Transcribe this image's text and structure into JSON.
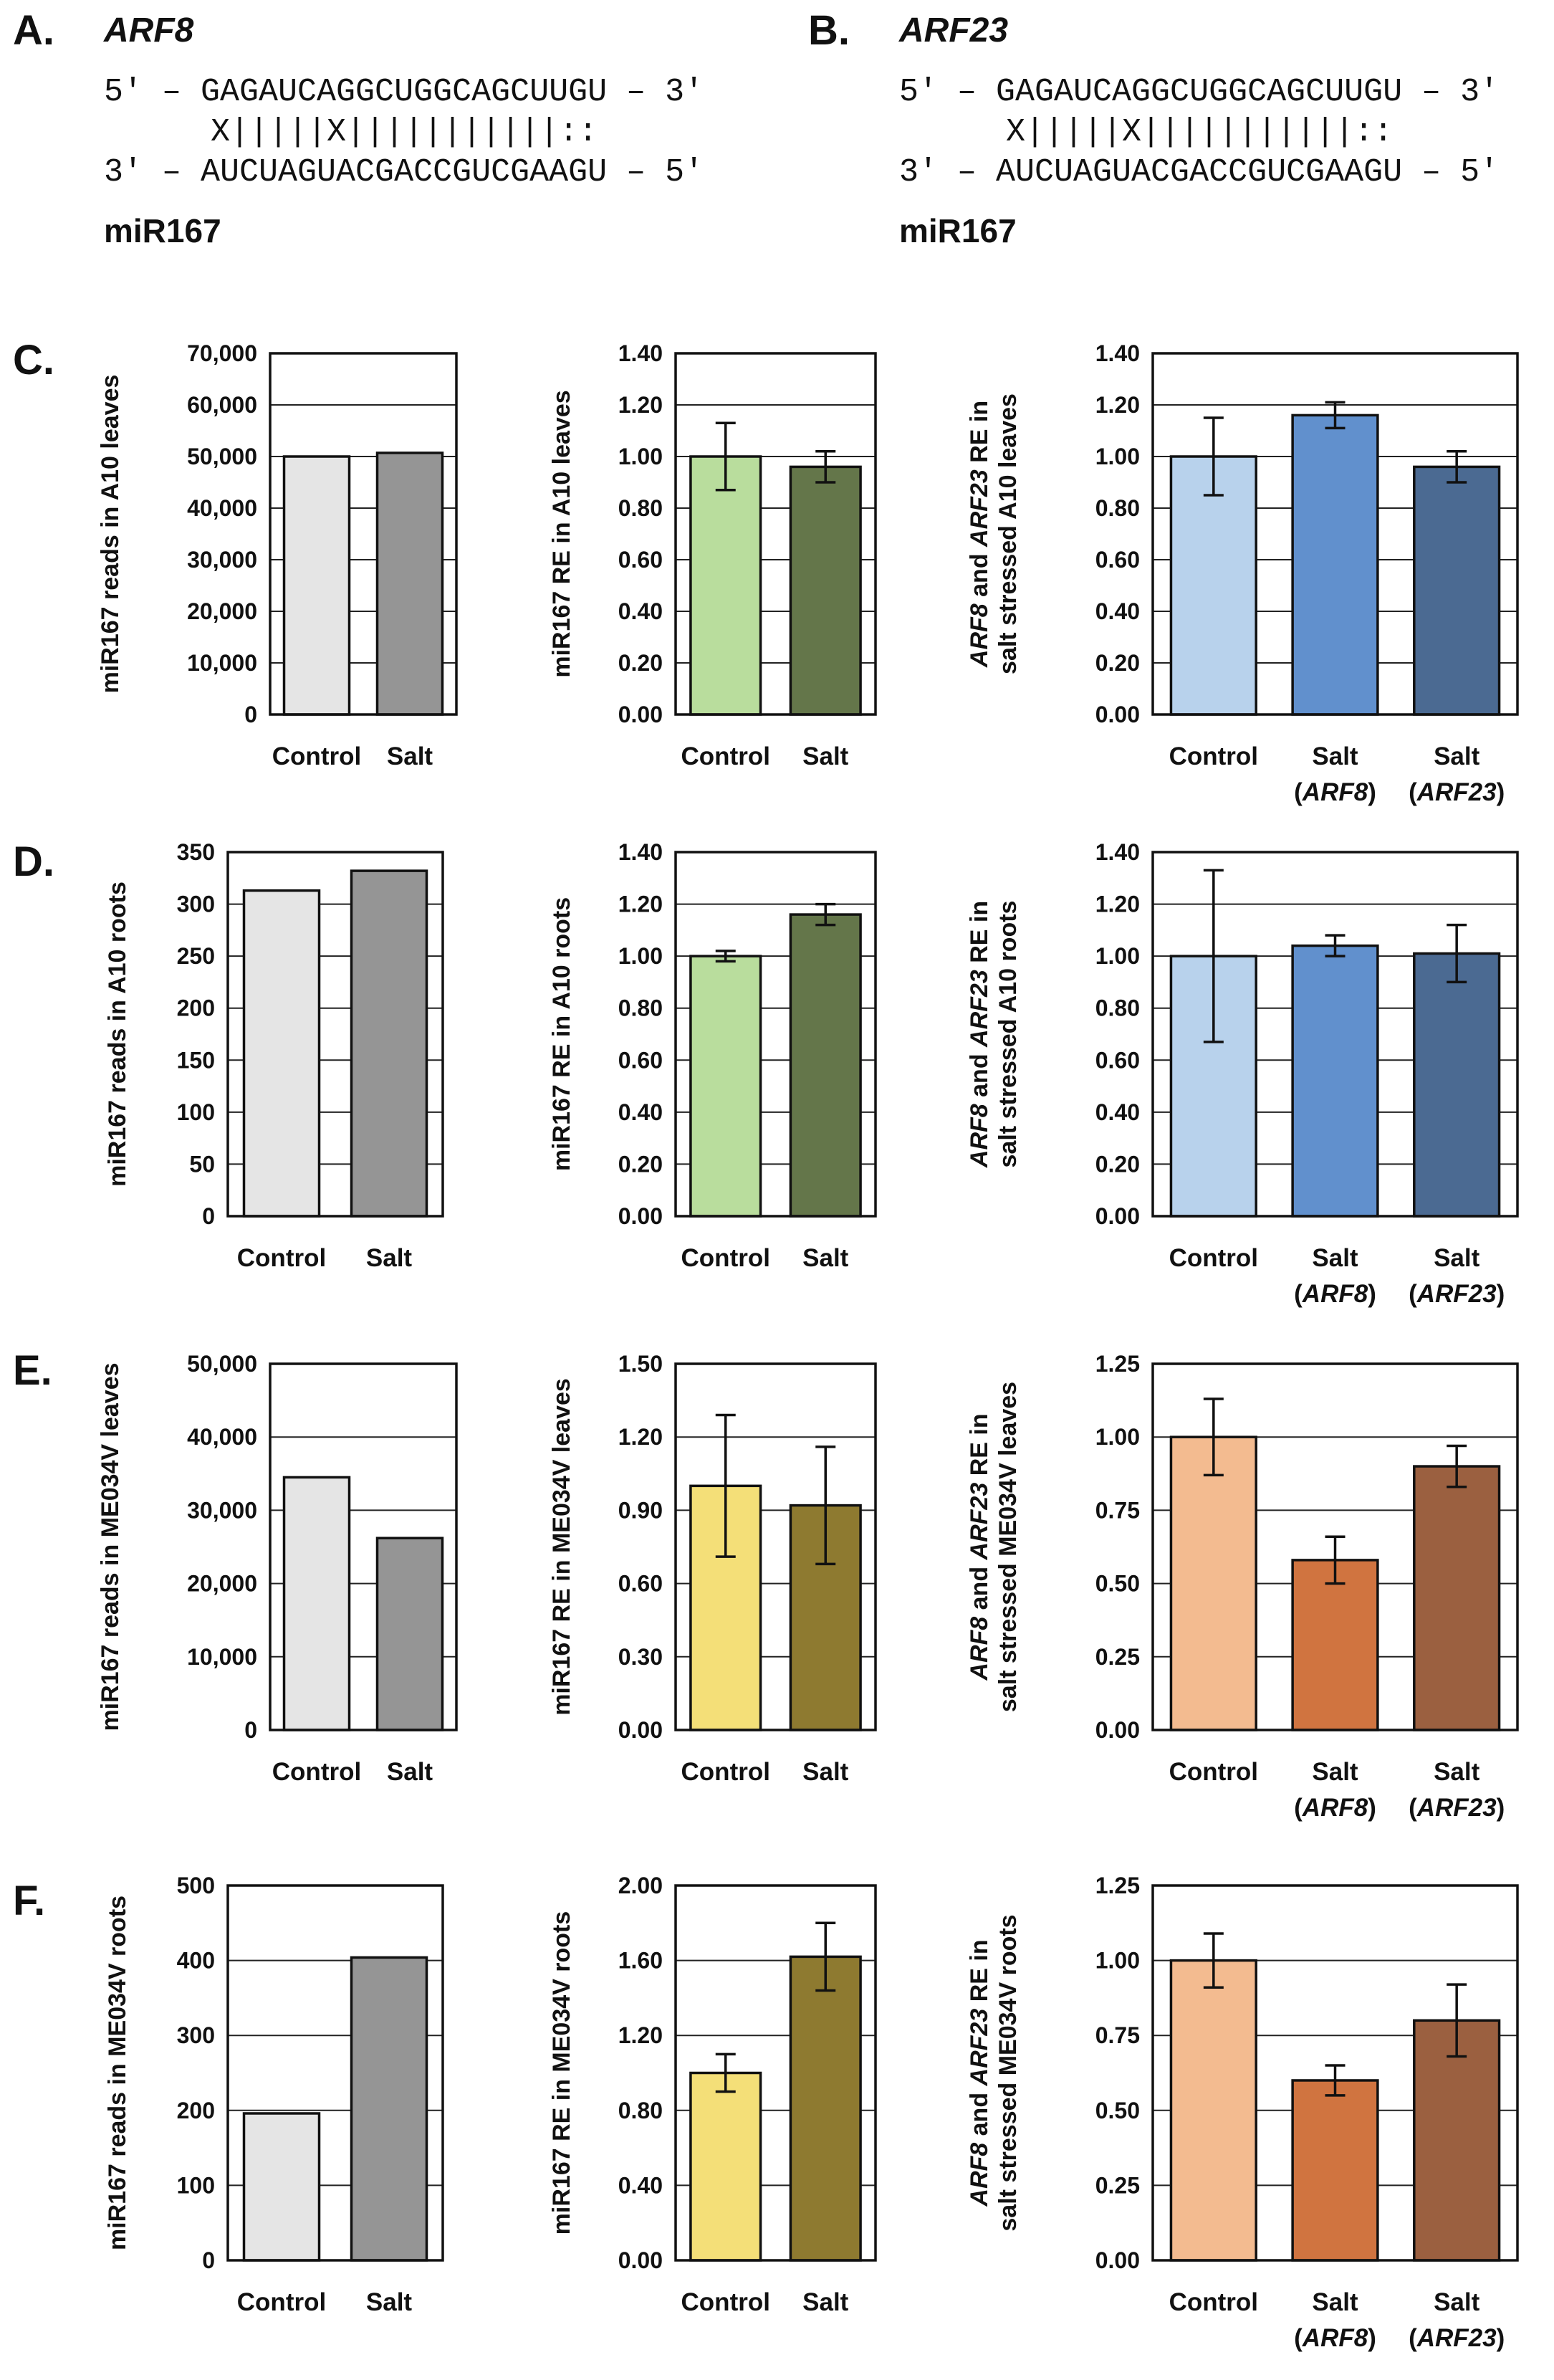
{
  "panel_labels": {
    "A": "A.",
    "B": "B.",
    "C": "C.",
    "D": "D.",
    "E": "E.",
    "F": "F."
  },
  "alignments": [
    {
      "gene": "ARF8",
      "top": "5′ – GAGAUCAGGCUGGCAGCUUGU – 3′",
      "match": "X|||||X|||||||||||::",
      "bottom": "3′ – AUCUAGUACGACCGUCGAAGU – 5′",
      "mirna": "miR167"
    },
    {
      "gene": "ARF23",
      "top": "5′ – GAGAUCAGGCUGGCAGCUUGU – 3′",
      "match": "X|||||X|||||||||||::",
      "bottom": "3′ – AUCUAGUACGACCGUCGAAGU – 5′",
      "mirna": "miR167"
    }
  ],
  "chart_data": [
    {
      "id": "c1",
      "row": "C",
      "col": 0,
      "type": "bar",
      "ylabel": "miR167 reads in A10 leaves",
      "ylim": [
        0,
        70000
      ],
      "ytick_step": 10000,
      "ytick_decimals": 0,
      "ytick_comma": true,
      "categories": [
        {
          "main": "Control"
        },
        {
          "main": "Salt"
        }
      ],
      "values": [
        50000,
        50700
      ],
      "errors": null,
      "colors": [
        "#e5e5e5",
        "#959595"
      ]
    },
    {
      "id": "c2",
      "row": "C",
      "col": 1,
      "type": "bar",
      "ylabel": "miR167 RE in A10 leaves",
      "ylim": [
        0,
        1.4
      ],
      "ytick_step": 0.2,
      "ytick_decimals": 2,
      "ytick_comma": false,
      "categories": [
        {
          "main": "Control"
        },
        {
          "main": "Salt"
        }
      ],
      "values": [
        1.0,
        0.96
      ],
      "errors": [
        0.13,
        0.06
      ],
      "colors": [
        "#b9dd9d",
        "#64764a"
      ]
    },
    {
      "id": "c3",
      "row": "C",
      "col": 2,
      "type": "bar",
      "ylabel_parts": [
        {
          "t": "ARF8",
          "i": true
        },
        {
          "t": " and ",
          "i": false
        },
        {
          "t": "ARF23",
          "i": true
        },
        {
          "t": " RE in",
          "i": false
        }
      ],
      "ylabel2": "salt stressed A10 leaves",
      "ylim": [
        0,
        1.4
      ],
      "ytick_step": 0.2,
      "ytick_decimals": 2,
      "ytick_comma": false,
      "categories": [
        {
          "main": "Control"
        },
        {
          "main": "Salt",
          "sub": "(ARF8)"
        },
        {
          "main": "Salt",
          "sub": "(ARF23)"
        }
      ],
      "values": [
        1.0,
        1.16,
        0.96
      ],
      "errors": [
        0.15,
        0.05,
        0.06
      ],
      "colors": [
        "#b8d2ec",
        "#6190cd",
        "#4b6a92"
      ]
    },
    {
      "id": "d1",
      "row": "D",
      "col": 0,
      "type": "bar",
      "ylabel": "miR167 reads in A10 roots",
      "ylim": [
        0,
        350
      ],
      "ytick_step": 50,
      "ytick_decimals": 0,
      "ytick_comma": false,
      "categories": [
        {
          "main": "Control"
        },
        {
          "main": "Salt"
        }
      ],
      "values": [
        313,
        332
      ],
      "errors": null,
      "colors": [
        "#e5e5e5",
        "#959595"
      ]
    },
    {
      "id": "d2",
      "row": "D",
      "col": 1,
      "type": "bar",
      "ylabel": "miR167 RE in A10 roots",
      "ylim": [
        0,
        1.4
      ],
      "ytick_step": 0.2,
      "ytick_decimals": 2,
      "ytick_comma": false,
      "categories": [
        {
          "main": "Control"
        },
        {
          "main": "Salt"
        }
      ],
      "values": [
        1.0,
        1.16
      ],
      "errors": [
        0.02,
        0.04
      ],
      "colors": [
        "#b9dd9d",
        "#64764a"
      ]
    },
    {
      "id": "d3",
      "row": "D",
      "col": 2,
      "type": "bar",
      "ylabel_parts": [
        {
          "t": "ARF8",
          "i": true
        },
        {
          "t": " and ",
          "i": false
        },
        {
          "t": "ARF23",
          "i": true
        },
        {
          "t": " RE in",
          "i": false
        }
      ],
      "ylabel2": "salt stressed A10 roots",
      "ylim": [
        0,
        1.4
      ],
      "ytick_step": 0.2,
      "ytick_decimals": 2,
      "ytick_comma": false,
      "categories": [
        {
          "main": "Control"
        },
        {
          "main": "Salt",
          "sub": "(ARF8)"
        },
        {
          "main": "Salt",
          "sub": "(ARF23)"
        }
      ],
      "values": [
        1.0,
        1.04,
        1.01
      ],
      "errors": [
        0.33,
        0.04,
        0.11
      ],
      "colors": [
        "#b8d2ec",
        "#6190cd",
        "#4b6a92"
      ]
    },
    {
      "id": "e1",
      "row": "E",
      "col": 0,
      "type": "bar",
      "ylabel": "miR167 reads in ME034V leaves",
      "ylim": [
        0,
        50000
      ],
      "ytick_step": 10000,
      "ytick_decimals": 0,
      "ytick_comma": true,
      "categories": [
        {
          "main": "Control"
        },
        {
          "main": "Salt"
        }
      ],
      "values": [
        34500,
        26200
      ],
      "errors": null,
      "colors": [
        "#e5e5e5",
        "#959595"
      ]
    },
    {
      "id": "e2",
      "row": "E",
      "col": 1,
      "type": "bar",
      "ylabel": "miR167 RE in ME034V leaves",
      "ylim": [
        0,
        1.5
      ],
      "ytick_step": 0.3,
      "ytick_decimals": 2,
      "ytick_comma": false,
      "categories": [
        {
          "main": "Control"
        },
        {
          "main": "Salt"
        }
      ],
      "values": [
        1.0,
        0.92
      ],
      "errors": [
        0.29,
        0.24
      ],
      "colors": [
        "#f4df78",
        "#8e7a30"
      ]
    },
    {
      "id": "e3",
      "row": "E",
      "col": 2,
      "type": "bar",
      "ylabel_parts": [
        {
          "t": "ARF8",
          "i": true
        },
        {
          "t": " and ",
          "i": false
        },
        {
          "t": "ARF23",
          "i": true
        },
        {
          "t": " RE in",
          "i": false
        }
      ],
      "ylabel2": "salt stressed ME034V leaves",
      "ylim": [
        0,
        1.25
      ],
      "ytick_step": 0.25,
      "ytick_decimals": 2,
      "ytick_comma": false,
      "categories": [
        {
          "main": "Control"
        },
        {
          "main": "Salt",
          "sub": "(ARF8)"
        },
        {
          "main": "Salt",
          "sub": "(ARF23)"
        }
      ],
      "values": [
        1.0,
        0.58,
        0.9
      ],
      "errors": [
        0.13,
        0.08,
        0.07
      ],
      "colors": [
        "#f3bb90",
        "#d07440",
        "#9b6040"
      ]
    },
    {
      "id": "f1",
      "row": "F",
      "col": 0,
      "type": "bar",
      "ylabel": "miR167 reads in ME034V roots",
      "ylim": [
        0,
        500
      ],
      "ytick_step": 100,
      "ytick_decimals": 0,
      "ytick_comma": false,
      "categories": [
        {
          "main": "Control"
        },
        {
          "main": "Salt"
        }
      ],
      "values": [
        196,
        404
      ],
      "errors": null,
      "colors": [
        "#e5e5e5",
        "#959595"
      ]
    },
    {
      "id": "f2",
      "row": "F",
      "col": 1,
      "type": "bar",
      "ylabel": "miR167 RE in ME034V roots",
      "ylim": [
        0,
        2.0
      ],
      "ytick_step": 0.4,
      "ytick_decimals": 2,
      "ytick_comma": false,
      "categories": [
        {
          "main": "Control"
        },
        {
          "main": "Salt"
        }
      ],
      "values": [
        1.0,
        1.62
      ],
      "errors": [
        0.1,
        0.18
      ],
      "colors": [
        "#f4df78",
        "#8e7a30"
      ]
    },
    {
      "id": "f3",
      "row": "F",
      "col": 2,
      "type": "bar",
      "ylabel_parts": [
        {
          "t": "ARF8",
          "i": true
        },
        {
          "t": " and ",
          "i": false
        },
        {
          "t": "ARF23",
          "i": true
        },
        {
          "t": " RE in",
          "i": false
        }
      ],
      "ylabel2": "salt stressed ME034V roots",
      "ylim": [
        0,
        1.25
      ],
      "ytick_step": 0.25,
      "ytick_decimals": 2,
      "ytick_comma": false,
      "categories": [
        {
          "main": "Control"
        },
        {
          "main": "Salt",
          "sub": "(ARF8)"
        },
        {
          "main": "Salt",
          "sub": "(ARF23)"
        }
      ],
      "values": [
        1.0,
        0.6,
        0.8
      ],
      "errors": [
        0.09,
        0.05,
        0.12
      ],
      "colors": [
        "#f3bb90",
        "#d07440",
        "#9b6040"
      ]
    }
  ]
}
